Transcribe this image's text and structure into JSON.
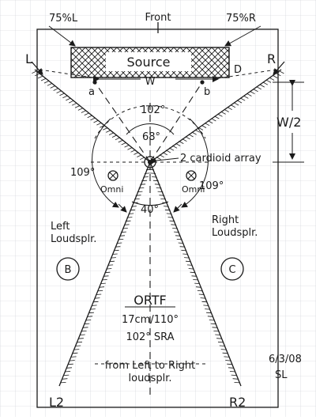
{
  "diagram": {
    "labels": {
      "front": "Front",
      "pct_left": "75%L",
      "pct_right": "75%R",
      "source": "Source",
      "speaker_l": "L",
      "speaker_r": "R",
      "point_d": "D",
      "point_a": "a",
      "point_b": "b",
      "width_w": "W",
      "half_width": "W/2",
      "angle_102": "102°",
      "angle_68": "68°",
      "array_note": "2 cardioid array",
      "angle_109_left": "109°",
      "angle_109_right": "109°",
      "omni_left": "Omni",
      "omni_right": "Omni",
      "angle_40": "40°",
      "left_speaker_line1": "Left",
      "left_speaker_line2": "Loudsplr.",
      "right_speaker_line1": "Right",
      "right_speaker_line2": "Loudsplr.",
      "circle_b": "B",
      "circle_c": "C",
      "ortf_title": "ORTF",
      "ortf_spec": "17cm/110°",
      "ortf_sra": "102° SRA",
      "bottom_note_line1": "from Left to Right",
      "bottom_note_line2": "loudsplr.",
      "speaker_l2": "L2",
      "speaker_r2": "R2",
      "date": "6/3/08",
      "initials": "SL"
    },
    "colors": {
      "ink": "#1a1a1a",
      "grid": "#c9cdd6",
      "paper": "#ffffff"
    }
  }
}
